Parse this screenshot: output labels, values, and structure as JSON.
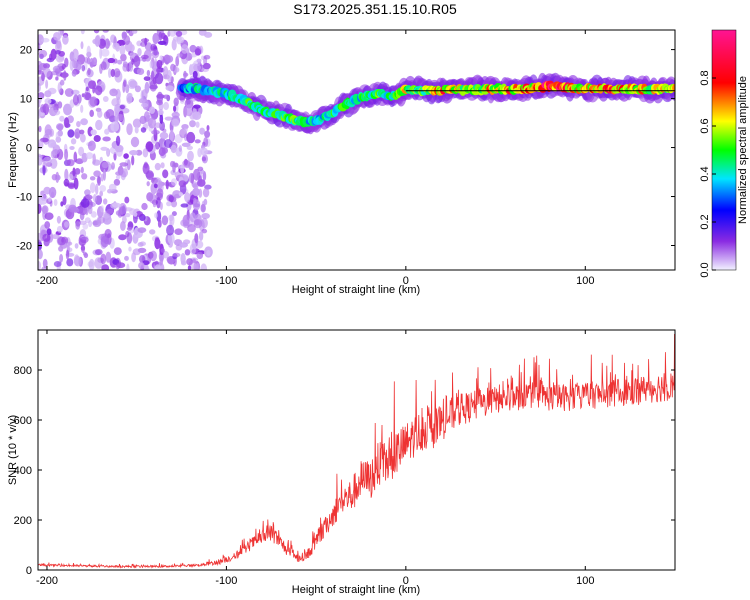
{
  "title": "S173.2025.351.15.10.R05",
  "chart_data": [
    {
      "type": "heatmap",
      "name": "spectrogram",
      "xlabel": "Height of straight line (km)",
      "ylabel": "Frequency (Hz)",
      "xlim": [
        -205,
        150
      ],
      "ylim": [
        -25,
        24
      ],
      "xticks": [
        -200,
        -100,
        0,
        100
      ],
      "xtick_labels": [
        "-200",
        "-100",
        "0",
        "100"
      ],
      "yticks": [
        -20,
        -10,
        0,
        10,
        20
      ],
      "ytick_labels": [
        "-20",
        "-10",
        "0",
        "10",
        "20"
      ],
      "colorbar": {
        "label": "Normalized spectral amplitude",
        "range": [
          0,
          1
        ],
        "ticks": [
          0.0,
          0.2,
          0.4,
          0.6,
          0.8
        ],
        "tick_labels": [
          "0.0",
          "0.2",
          "0.4",
          "0.6",
          "0.8"
        ],
        "colors": [
          "#f0f0ff",
          "#8a2be2",
          "#0000ff",
          "#00e5ff",
          "#00ff00",
          "#ffff00",
          "#ff0000",
          "#ff1493"
        ]
      },
      "noise_region_x": [
        -205,
        -110
      ],
      "reference_line_frequency": 11.6,
      "ridge": {
        "x": [
          -125,
          -115,
          -108,
          -100,
          -92,
          -85,
          -78,
          -70,
          -62,
          -55,
          -50,
          -45,
          -40,
          -34,
          -28,
          -22,
          -16,
          -10,
          -5,
          0,
          5,
          12,
          20,
          30,
          40,
          50,
          60,
          70,
          80,
          90,
          100,
          110,
          120,
          130,
          140,
          150
        ],
        "frequency": [
          12.0,
          12.0,
          11.5,
          11.0,
          10.0,
          8.8,
          7.4,
          6.6,
          5.7,
          5.2,
          5.5,
          6.2,
          7.3,
          8.7,
          9.8,
          10.6,
          11.0,
          10.4,
          10.8,
          11.8,
          12.0,
          11.6,
          11.7,
          11.8,
          11.9,
          11.9,
          11.9,
          12.1,
          12.6,
          12.3,
          11.9,
          12.1,
          11.9,
          11.9,
          11.9,
          11.9
        ],
        "amplitude": [
          0.35,
          0.5,
          0.45,
          0.5,
          0.55,
          0.6,
          0.5,
          0.55,
          0.6,
          0.5,
          0.45,
          0.5,
          0.55,
          0.6,
          0.5,
          0.55,
          0.6,
          0.5,
          0.6,
          0.75,
          0.6,
          0.65,
          0.8,
          0.7,
          0.7,
          0.75,
          0.8,
          0.8,
          0.9,
          0.85,
          0.75,
          0.85,
          0.8,
          0.75,
          0.7,
          0.7
        ]
      }
    },
    {
      "type": "line",
      "name": "snr",
      "xlabel": "Height of straight line (km)",
      "ylabel": "SNR (10 * v/v)",
      "xlim": [
        -205,
        150
      ],
      "ylim": [
        0,
        960
      ],
      "xticks": [
        -200,
        -100,
        0,
        100
      ],
      "xtick_labels": [
        "-200",
        "-100",
        "0",
        "100"
      ],
      "yticks": [
        0,
        200,
        400,
        600,
        800
      ],
      "ytick_labels": [
        "0",
        "200",
        "400",
        "600",
        "800"
      ],
      "line_color": "#ee3333",
      "series": [
        {
          "name": "SNR",
          "x": [
            -205,
            -190,
            -170,
            -150,
            -130,
            -115,
            -105,
            -95,
            -90,
            -85,
            -80,
            -75,
            -70,
            -65,
            -60,
            -55,
            -50,
            -45,
            -40,
            -35,
            -30,
            -25,
            -20,
            -15,
            -10,
            -5,
            0,
            5,
            10,
            15,
            20,
            25,
            30,
            40,
            50,
            60,
            70,
            80,
            90,
            100,
            110,
            120,
            130,
            140,
            150
          ],
          "y": [
            20,
            18,
            15,
            14,
            15,
            20,
            30,
            55,
            80,
            110,
            130,
            150,
            110,
            70,
            45,
            60,
            110,
            170,
            230,
            280,
            300,
            360,
            360,
            420,
            430,
            470,
            500,
            540,
            560,
            560,
            590,
            620,
            640,
            660,
            680,
            690,
            700,
            690,
            690,
            700,
            700,
            710,
            720,
            730,
            740
          ],
          "spread": [
            8,
            8,
            8,
            8,
            8,
            10,
            20,
            30,
            40,
            50,
            60,
            70,
            60,
            40,
            30,
            40,
            60,
            80,
            100,
            130,
            140,
            160,
            170,
            180,
            180,
            180,
            180,
            170,
            160,
            150,
            150,
            140,
            130,
            120,
            110,
            110,
            110,
            110,
            110,
            110,
            110,
            110,
            120,
            120,
            130
          ]
        }
      ]
    }
  ]
}
